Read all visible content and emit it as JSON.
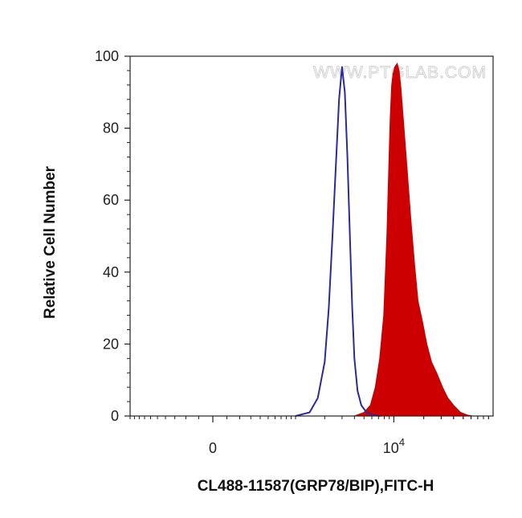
{
  "chart_data": {
    "type": "area",
    "watermark": "WWW.PTGLAB.COM",
    "xlabel": "CL488-11587(GRP78/BIP),FITC-H",
    "ylabel": "Relative Cell Number",
    "xscale": "biexponential",
    "xlim": [
      -1000,
      100000
    ],
    "ylim": [
      0,
      100
    ],
    "y_ticks": [
      "0",
      "20",
      "40",
      "60",
      "80",
      "100"
    ],
    "x_ticks": [
      {
        "value": 0,
        "label": "0"
      },
      {
        "value": 10000,
        "label": "10",
        "exponent": "4"
      }
    ],
    "grid": false,
    "series": [
      {
        "name": "",
        "style": "outline",
        "color": "#2a2a9a",
        "x": [
          1000,
          1400,
          1700,
          2000,
          2200,
          2400,
          2600,
          2800,
          3000,
          3200,
          3400,
          3600,
          3800,
          4000,
          4300,
          4700,
          5300,
          6200,
          7300
        ],
        "y": [
          0,
          1,
          5,
          15,
          30,
          50,
          70,
          88,
          97,
          90,
          72,
          50,
          30,
          16,
          7,
          3,
          1,
          0.3,
          0
        ]
      },
      {
        "name": "",
        "style": "filled",
        "color": "#cc0000",
        "x": [
          4000,
          5000,
          5800,
          6500,
          7200,
          7900,
          8500,
          8900,
          9200,
          9500,
          9800,
          10200,
          10800,
          11300,
          11800,
          12500,
          13500,
          14800,
          16200,
          17500,
          19500,
          21500,
          24000,
          27000,
          31000,
          35000,
          40000,
          47000,
          55000,
          62000
        ],
        "y": [
          0,
          1,
          3,
          8,
          16,
          28,
          50,
          70,
          83,
          92,
          95,
          97,
          98,
          96,
          91,
          82,
          70,
          55,
          42,
          32,
          26,
          20,
          15,
          12,
          8,
          5,
          3,
          1,
          0.3,
          0
        ]
      }
    ]
  }
}
